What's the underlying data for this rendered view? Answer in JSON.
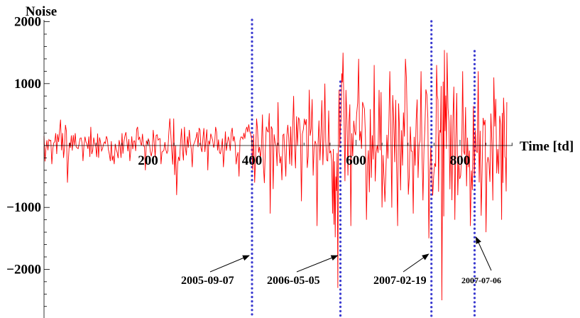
{
  "chart_data": {
    "type": "line",
    "xlabel": "Time [td]",
    "ylabel": "Noise",
    "xlim": [
      0,
      900
    ],
    "ylim": [
      -2800,
      2000
    ],
    "x_ticks": [
      200,
      400,
      600,
      800
    ],
    "y_ticks": [
      2000,
      1000,
      -1000,
      -2000
    ],
    "series": [
      {
        "color": "#ff0000",
        "note": "high-frequency noise series, sampled",
        "x": [
          0,
          15,
          30,
          45,
          60,
          75,
          90,
          105,
          120,
          135,
          150,
          165,
          180,
          195,
          210,
          225,
          240,
          255,
          270,
          285,
          300,
          315,
          330,
          345,
          360,
          375,
          390,
          405,
          420,
          435,
          450,
          465,
          480,
          495,
          510,
          525,
          540,
          555,
          565,
          575,
          590,
          605,
          620,
          635,
          650,
          665,
          680,
          695,
          710,
          725,
          740,
          755,
          765,
          775,
          790,
          805,
          820,
          835,
          850,
          865,
          880,
          890
        ],
        "y": [
          150,
          -300,
          250,
          -600,
          200,
          -250,
          300,
          -200,
          150,
          -300,
          200,
          -250,
          300,
          -400,
          250,
          -300,
          200,
          -800,
          300,
          -350,
          250,
          -400,
          300,
          -350,
          200,
          -500,
          300,
          -600,
          500,
          -1100,
          700,
          -500,
          800,
          -900,
          900,
          -1300,
          1000,
          -1100,
          -2300,
          1500,
          -1300,
          1400,
          -1200,
          1300,
          -1000,
          1200,
          -1300,
          1400,
          -1100,
          1200,
          -1500,
          1300,
          -2500,
          1500,
          -1200,
          1200,
          -1300,
          1200,
          -1400,
          1100,
          -1200,
          700
        ]
      }
    ],
    "annotations": [
      {
        "label": "2005-09-07",
        "x": 400
      },
      {
        "label": "2006-05-05",
        "x": 570
      },
      {
        "label": "2007-02-19",
        "x": 745
      },
      {
        "label": "2007-07-06",
        "x": 828
      }
    ]
  }
}
